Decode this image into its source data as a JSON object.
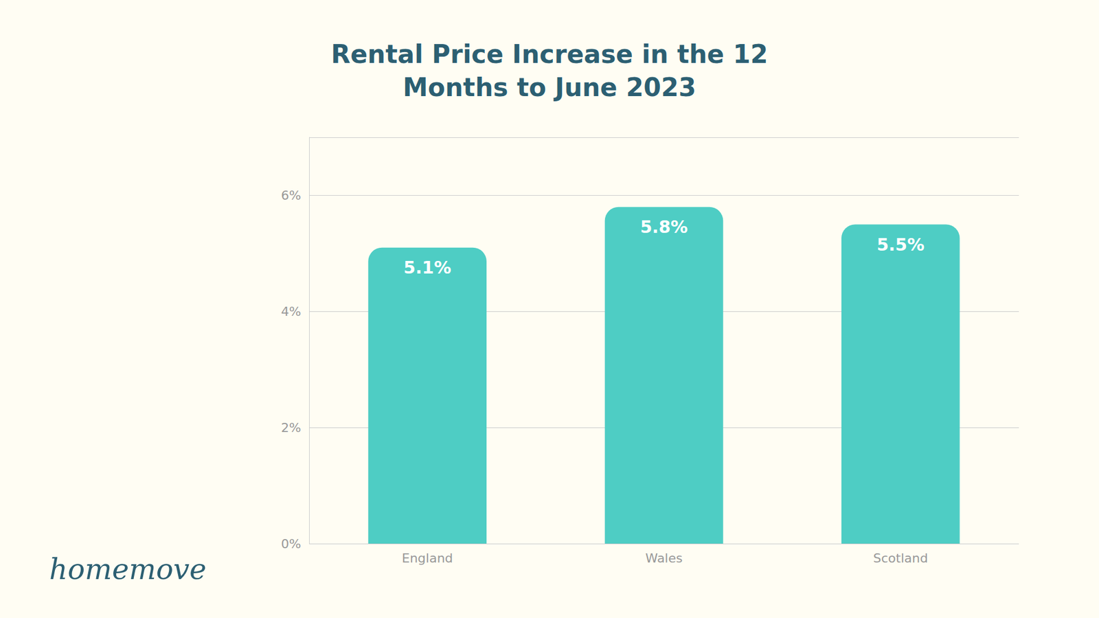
{
  "chart_data": {
    "type": "bar",
    "title": "Rental Price Increase in the 12\nMonths to June 2023",
    "categories": [
      "England",
      "Wales",
      "Scotland"
    ],
    "values": [
      5.1,
      5.8,
      5.5
    ],
    "value_labels": [
      "5.1%",
      "5.8%",
      "5.5%"
    ],
    "color": "#4ECDC4",
    "ylim": [
      0,
      7
    ],
    "yticks": [
      {
        "value": 0,
        "label": "0%"
      },
      {
        "value": 2,
        "label": "2%"
      },
      {
        "value": 4,
        "label": "4%"
      },
      {
        "value": 6,
        "label": "6%"
      }
    ],
    "grid": true,
    "data_labels": true,
    "annotations": [
      "homemove"
    ]
  }
}
